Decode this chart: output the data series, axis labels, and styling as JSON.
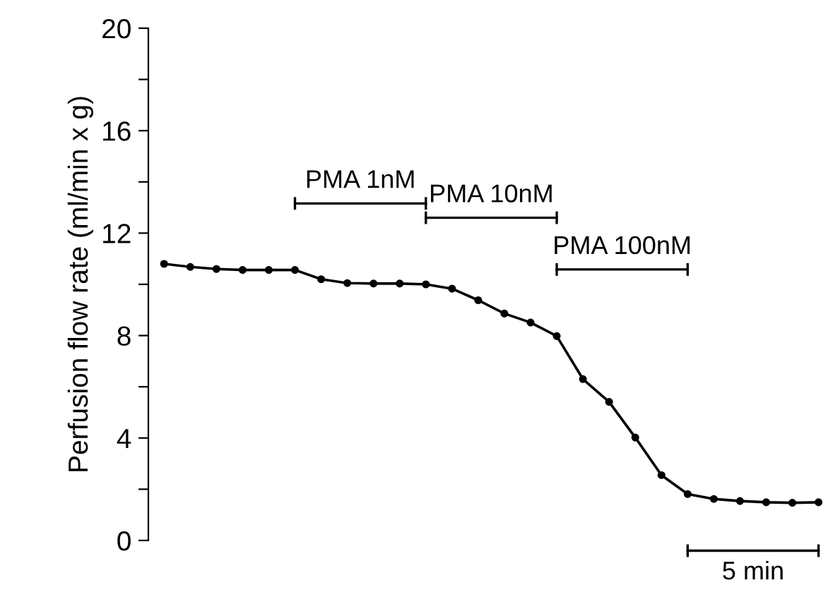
{
  "chart_data": {
    "type": "line",
    "ylabel": "Perfusion flow rate (ml/min x g)",
    "categories": [
      null,
      null,
      null,
      null,
      null,
      null,
      null,
      null,
      null,
      null,
      null,
      null,
      null,
      null,
      null,
      null,
      null,
      null,
      null,
      null,
      null,
      null,
      null,
      null,
      null,
      null
    ],
    "series": [
      {
        "color": "#000000",
        "values": [
          10.8,
          10.68,
          10.6,
          10.56,
          10.56,
          10.56,
          10.2,
          10.05,
          10.03,
          10.03,
          10.0,
          9.83,
          9.38,
          8.86,
          8.51,
          7.98,
          6.3,
          5.41,
          4.02,
          2.55,
          1.81,
          1.62,
          1.54,
          1.49,
          1.47,
          1.49
        ]
      }
    ],
    "ylim": [
      0,
      20
    ],
    "yticks": [
      0,
      {
        "value": 2,
        "label": null
      },
      4,
      {
        "value": 6,
        "label": null
      },
      8,
      {
        "value": 10,
        "label": null
      },
      12,
      {
        "value": 14,
        "label": null
      },
      16,
      {
        "value": 18,
        "label": null
      },
      20
    ],
    "tick_labels": "y",
    "marker": "circle",
    "line_style": "solid",
    "annotations": [
      "PMA 1nM",
      "PMA 10nM",
      "PMA 100nM",
      "5 min"
    ]
  }
}
